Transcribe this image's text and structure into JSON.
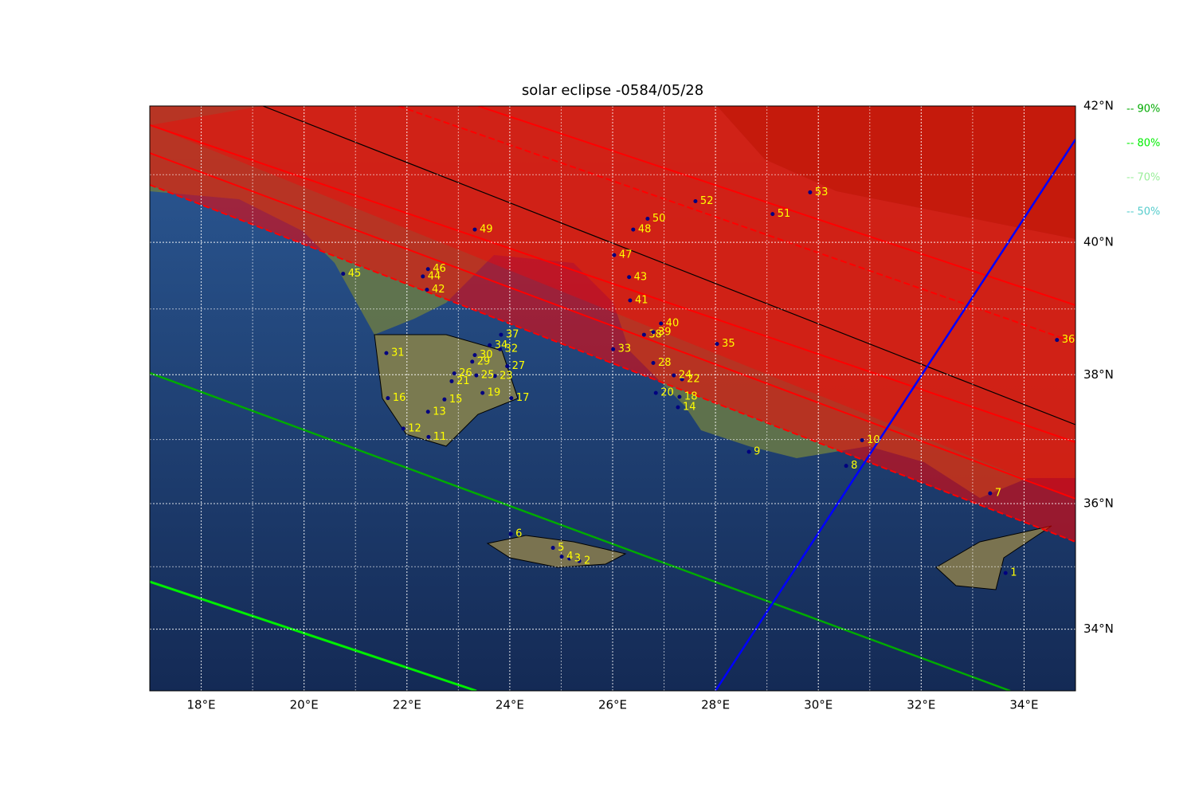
{
  "chart_data": {
    "type": "map",
    "title": "solar eclipse -0584/05/28",
    "xlim": [
      17,
      35
    ],
    "ylim": [
      33,
      42
    ],
    "xticks": [
      {
        "value": 18,
        "label": "18°E"
      },
      {
        "value": 20,
        "label": "20°E"
      },
      {
        "value": 22,
        "label": "22°E"
      },
      {
        "value": 24,
        "label": "24°E"
      },
      {
        "value": 26,
        "label": "26°E"
      },
      {
        "value": 28,
        "label": "28°E"
      },
      {
        "value": 30,
        "label": "30°E"
      },
      {
        "value": 32,
        "label": "32°E"
      },
      {
        "value": 34,
        "label": "34°E"
      }
    ],
    "yticks": [
      {
        "value": 34,
        "label": "34°N"
      },
      {
        "value": 36,
        "label": "36°N"
      },
      {
        "value": 38,
        "label": "38°N"
      },
      {
        "value": 40,
        "label": "40°N"
      },
      {
        "value": 42,
        "label": "42°N"
      }
    ],
    "legend": [
      {
        "label": "-- 90%",
        "color": "#00aa00"
      },
      {
        "label": "-- 80%",
        "color": "#00ee00"
      },
      {
        "label": "-- 70%",
        "color": "#99ee99"
      },
      {
        "label": "-- 50%",
        "color": "#55cccc"
      }
    ],
    "point_color": "#000080",
    "points": [
      {
        "label": "1",
        "lon": 33.64,
        "lat": 34.9
      },
      {
        "label": "2",
        "lon": 25.35,
        "lat": 35.09
      },
      {
        "label": "3",
        "lon": 25.16,
        "lat": 35.13
      },
      {
        "label": "4",
        "lon": 25.01,
        "lat": 35.16
      },
      {
        "label": "5",
        "lon": 24.84,
        "lat": 35.3
      },
      {
        "label": "6",
        "lon": 24.02,
        "lat": 35.52
      },
      {
        "label": "7",
        "lon": 33.34,
        "lat": 36.16
      },
      {
        "label": "8",
        "lon": 30.54,
        "lat": 36.59
      },
      {
        "label": "9",
        "lon": 28.65,
        "lat": 36.81
      },
      {
        "label": "10",
        "lon": 30.85,
        "lat": 36.99
      },
      {
        "label": "11",
        "lon": 22.42,
        "lat": 37.04
      },
      {
        "label": "12",
        "lon": 21.93,
        "lat": 37.17
      },
      {
        "label": "13",
        "lon": 22.41,
        "lat": 37.43
      },
      {
        "label": "14",
        "lon": 27.27,
        "lat": 37.5
      },
      {
        "label": "15",
        "lon": 22.73,
        "lat": 37.62
      },
      {
        "label": "16",
        "lon": 21.63,
        "lat": 37.64
      },
      {
        "label": "17",
        "lon": 24.03,
        "lat": 37.64
      },
      {
        "label": "18",
        "lon": 27.3,
        "lat": 37.66
      },
      {
        "label": "19",
        "lon": 23.47,
        "lat": 37.72
      },
      {
        "label": "20",
        "lon": 26.84,
        "lat": 37.72
      },
      {
        "label": "21",
        "lon": 22.87,
        "lat": 37.9
      },
      {
        "label": "22",
        "lon": 27.35,
        "lat": 37.93
      },
      {
        "label": "23",
        "lon": 23.71,
        "lat": 37.98
      },
      {
        "label": "24",
        "lon": 27.19,
        "lat": 37.99
      },
      {
        "label": "25",
        "lon": 23.35,
        "lat": 37.99
      },
      {
        "label": "26",
        "lon": 22.92,
        "lat": 38.02
      },
      {
        "label": "27",
        "lon": 23.95,
        "lat": 38.13
      },
      {
        "label": "28",
        "lon": 26.79,
        "lat": 38.18
      },
      {
        "label": "29",
        "lon": 23.27,
        "lat": 38.2
      },
      {
        "label": "30",
        "lon": 23.32,
        "lat": 38.3
      },
      {
        "label": "31",
        "lon": 21.6,
        "lat": 38.33
      },
      {
        "label": "32",
        "lon": 23.81,
        "lat": 38.39
      },
      {
        "label": "33",
        "lon": 26.01,
        "lat": 38.39
      },
      {
        "label": "34",
        "lon": 23.61,
        "lat": 38.45
      },
      {
        "label": "35",
        "lon": 28.03,
        "lat": 38.47
      },
      {
        "label": "36",
        "lon": 34.64,
        "lat": 38.53
      },
      {
        "label": "37",
        "lon": 23.83,
        "lat": 38.61
      },
      {
        "label": "38",
        "lon": 26.61,
        "lat": 38.61
      },
      {
        "label": "39",
        "lon": 26.79,
        "lat": 38.65
      },
      {
        "label": "40",
        "lon": 26.94,
        "lat": 38.78
      },
      {
        "label": "41",
        "lon": 26.34,
        "lat": 39.13
      },
      {
        "label": "42",
        "lon": 22.39,
        "lat": 39.29
      },
      {
        "label": "43",
        "lon": 26.32,
        "lat": 39.48
      },
      {
        "label": "44",
        "lon": 22.31,
        "lat": 39.49
      },
      {
        "label": "45",
        "lon": 20.76,
        "lat": 39.53
      },
      {
        "label": "46",
        "lon": 22.41,
        "lat": 39.6
      },
      {
        "label": "47",
        "lon": 26.03,
        "lat": 39.81
      },
      {
        "label": "48",
        "lon": 26.4,
        "lat": 40.19
      },
      {
        "label": "49",
        "lon": 23.32,
        "lat": 40.19
      },
      {
        "label": "50",
        "lon": 26.68,
        "lat": 40.35
      },
      {
        "label": "51",
        "lon": 29.11,
        "lat": 40.42
      },
      {
        "label": "52",
        "lon": 27.61,
        "lat": 40.61
      },
      {
        "label": "53",
        "lon": 29.84,
        "lat": 40.74
      }
    ]
  }
}
